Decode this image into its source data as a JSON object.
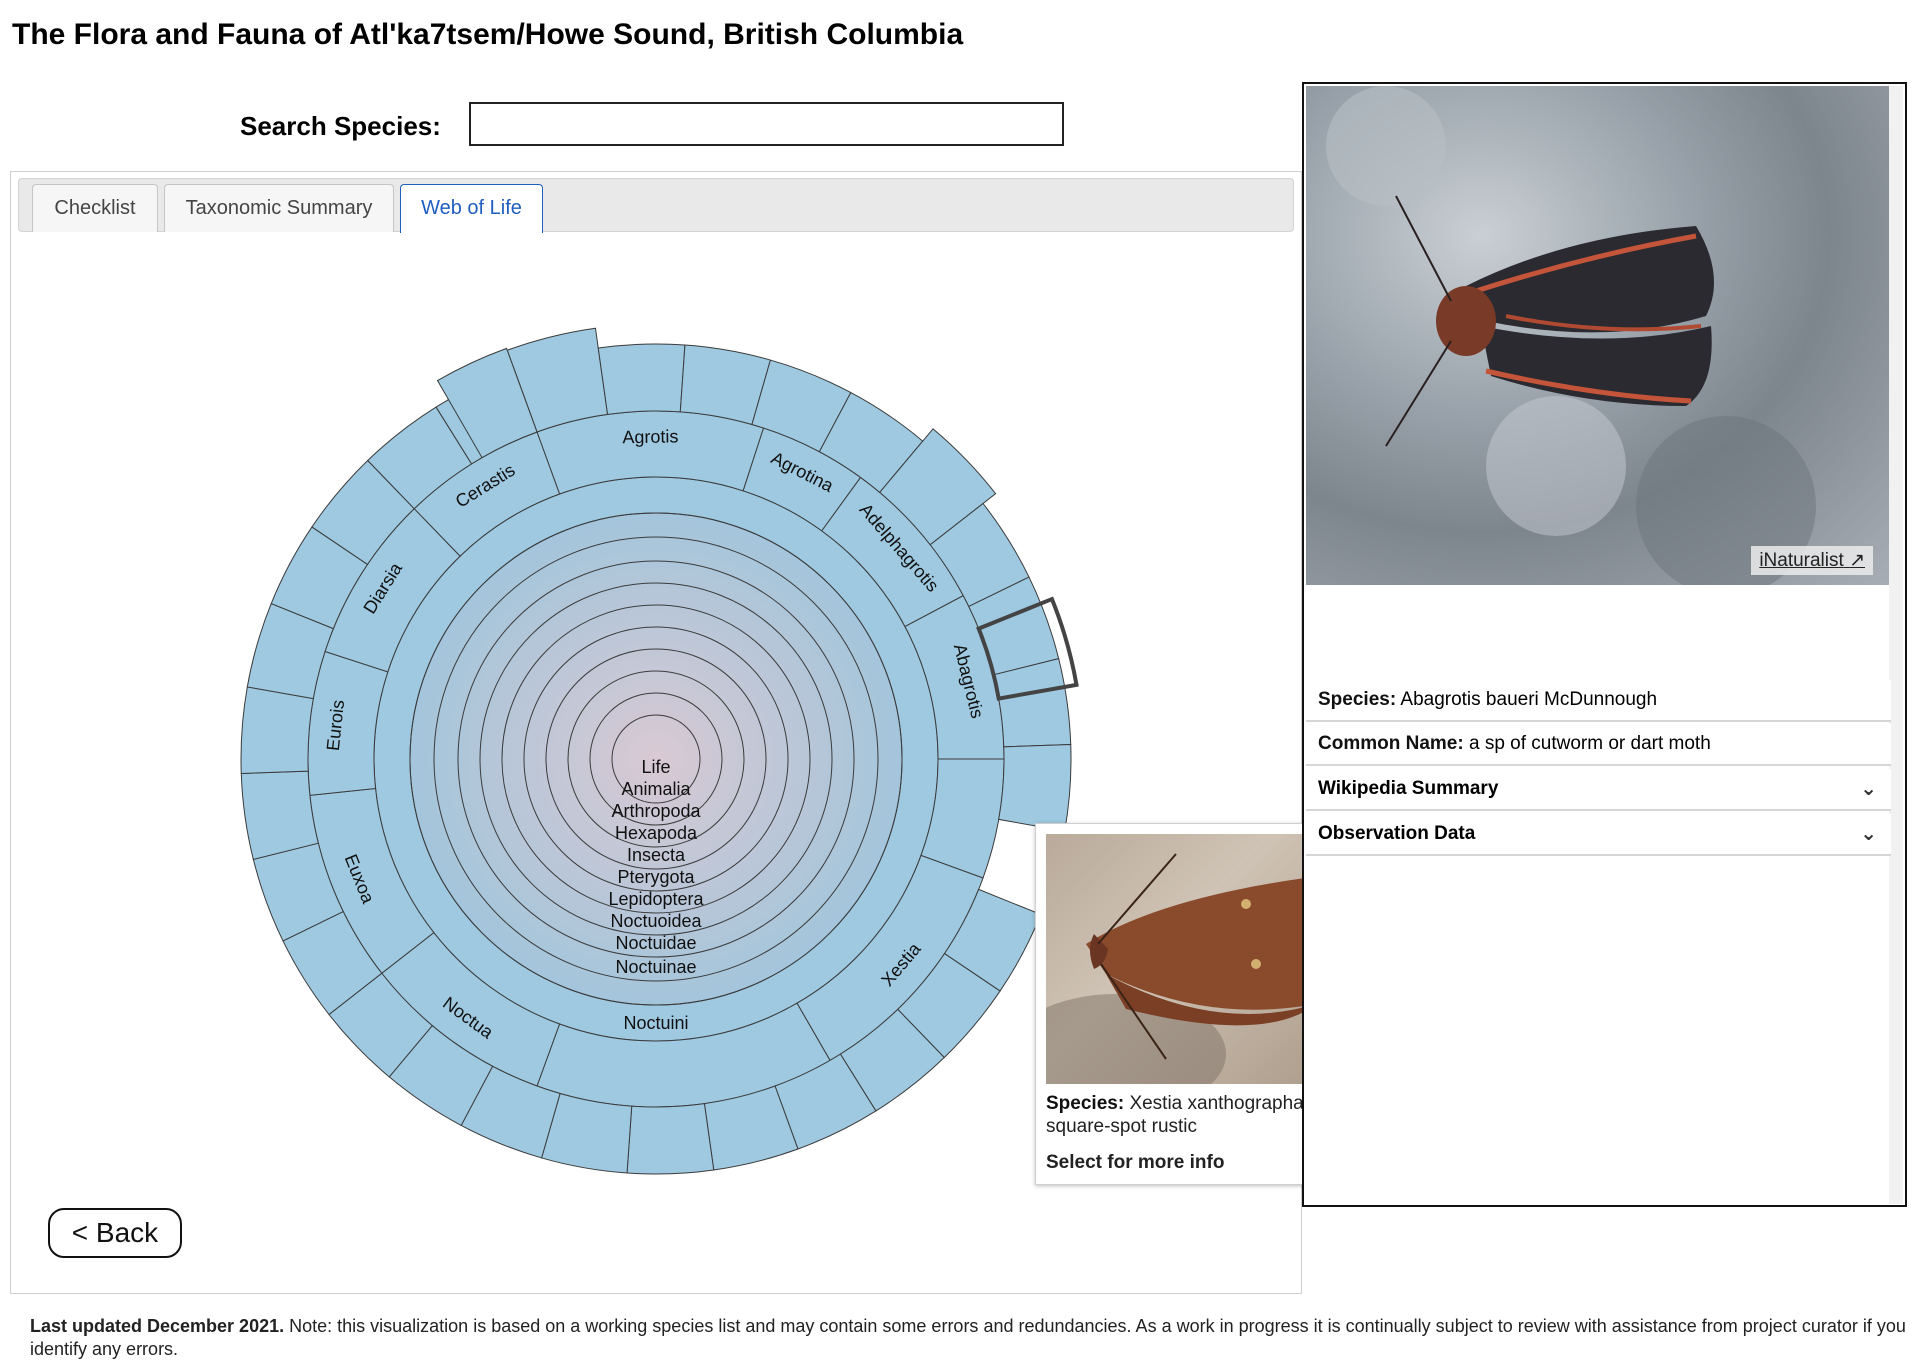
{
  "page": {
    "title": "The Flora and Fauna of Atl'ka7tsem/Howe Sound, British Columbia"
  },
  "search": {
    "label": "Search Species:",
    "value": "",
    "placeholder": ""
  },
  "tabs": [
    {
      "label": "Checklist",
      "active": false
    },
    {
      "label": "Taxonomic Summary",
      "active": false
    },
    {
      "label": "Web of Life",
      "active": true
    }
  ],
  "sunburst": {
    "fill_color": "#9ec9e0",
    "center_color": "#c4b9c9",
    "stroke_color": "#3b3b3b",
    "highlight_stroke": "#444444",
    "lineage": [
      "Life",
      "Animalia",
      "Arthropoda",
      "Hexapoda",
      "Insecta",
      "Pterygota",
      "Lepidoptera",
      "Noctuoidea",
      "Noctuidae",
      "Noctuinae"
    ],
    "tribe": "Noctuini",
    "genera": [
      "Agrotis",
      "Agrotina",
      "Adelphagrotis",
      "Abagrotis",
      "Xestia",
      "Noctua",
      "Euxoa",
      "Eurois",
      "Diarsia",
      "Cerastis"
    ]
  },
  "back_button": {
    "label": "< Back"
  },
  "tooltip": {
    "species_label": "Species:",
    "species_value": "Xestia xanthographa / square-spot rustic",
    "more_label": "Select for more info",
    "image_icon": "moth-photo"
  },
  "side_panel": {
    "image_icon": "moth-photo",
    "inat_label": "iNaturalist",
    "species_label": "Species:",
    "species_value": "Abagrotis baueri McDunnough",
    "common_label": "Common Name:",
    "common_value": "a sp of cutworm or dart moth",
    "wikipedia_label": "Wikipedia Summary",
    "observation_label": "Observation Data"
  },
  "footer": {
    "bold": "Last updated December 2021.",
    "text": " Note: this visualization is based on a working species list and may contain some errors and redundancies. As a work in progress it is continually subject to review with assistance from project curator if you identify any errors."
  }
}
